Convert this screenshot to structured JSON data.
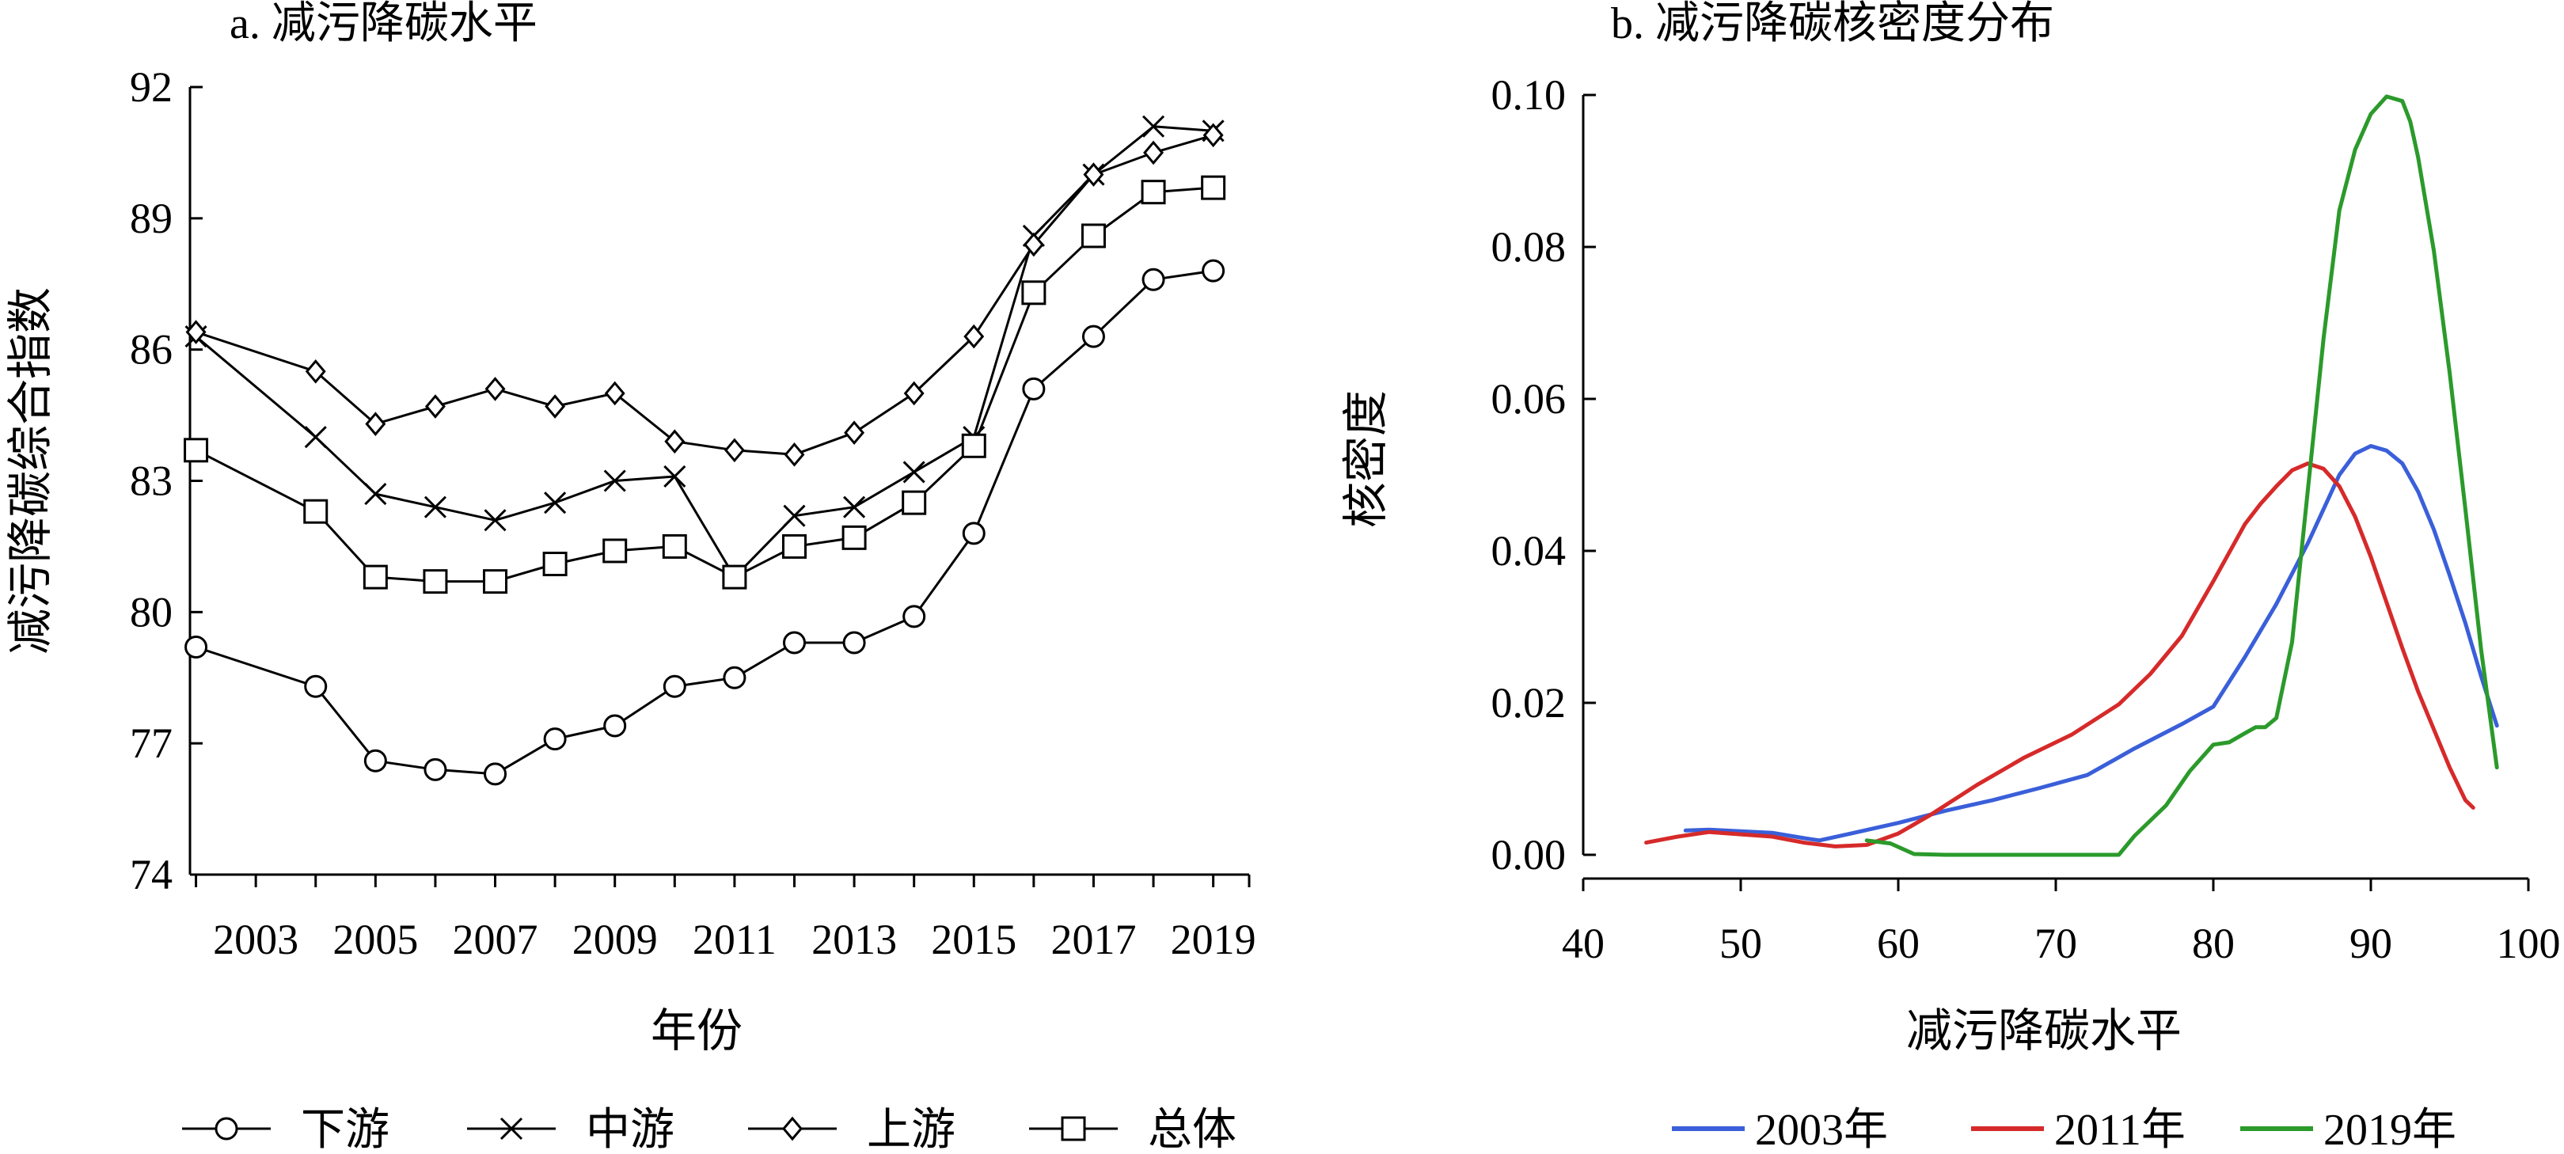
{
  "chart_data": [
    {
      "type": "line",
      "title": "a. 减污降碳水平",
      "xlabel": "年份",
      "ylabel": "减污降碳综合指数",
      "x": [
        2002,
        2004,
        2005,
        2006,
        2007,
        2008,
        2009,
        2010,
        2011,
        2012,
        2013,
        2014,
        2015,
        2016,
        2017,
        2018,
        2019
      ],
      "xlim": [
        2001.9,
        2019.6
      ],
      "xticks": [
        2003,
        2005,
        2007,
        2009,
        2011,
        2013,
        2015,
        2017,
        2019
      ],
      "xtick_labels": [
        "2003",
        "2005",
        "2007",
        "2009",
        "2011",
        "2013",
        "2015",
        "2017",
        "2019"
      ],
      "ylim": [
        74,
        92
      ],
      "yticks": [
        74,
        77,
        80,
        83,
        86,
        89,
        92
      ],
      "ytick_labels": [
        "74",
        "77",
        "80",
        "83",
        "86",
        "89",
        "92"
      ],
      "grid": false,
      "legend_position": "bottom",
      "series": [
        {
          "name": "下游",
          "marker": "circle",
          "color": "#000000",
          "values": [
            79.2,
            78.3,
            76.6,
            76.4,
            76.3,
            77.1,
            77.4,
            78.3,
            78.5,
            79.3,
            79.3,
            79.9,
            81.8,
            85.1,
            86.3,
            87.6,
            87.8
          ]
        },
        {
          "name": "中游",
          "marker": "x",
          "color": "#000000",
          "values": [
            86.3,
            84.0,
            82.7,
            82.4,
            82.1,
            82.5,
            83.0,
            83.1,
            80.8,
            82.2,
            82.4,
            83.2,
            84.0,
            88.6,
            90.0,
            91.1,
            91.0
          ]
        },
        {
          "name": "上游",
          "marker": "diamond",
          "color": "#000000",
          "values": [
            86.4,
            85.5,
            84.3,
            84.7,
            85.1,
            84.7,
            85.0,
            83.9,
            83.7,
            83.6,
            84.1,
            85.0,
            86.3,
            88.4,
            90.0,
            90.5,
            90.9
          ]
        },
        {
          "name": "总体",
          "marker": "square",
          "color": "#000000",
          "values": [
            83.7,
            82.3,
            80.8,
            80.7,
            80.7,
            81.1,
            81.4,
            81.5,
            80.8,
            81.5,
            81.7,
            82.5,
            83.8,
            87.3,
            88.6,
            89.6,
            89.7
          ]
        }
      ]
    },
    {
      "type": "line",
      "title": "b. 减污降碳核密度分布",
      "xlabel": "减污降碳水平",
      "ylabel": "核密度",
      "xlim": [
        40,
        100
      ],
      "ylim": [
        0,
        0.1
      ],
      "xticks": [
        40,
        50,
        60,
        70,
        80,
        90,
        100
      ],
      "xtick_labels": [
        "40",
        "50",
        "60",
        "70",
        "80",
        "90",
        "100"
      ],
      "yticks": [
        0,
        0.02,
        0.04,
        0.06,
        0.08,
        0.1
      ],
      "ytick_labels": [
        "0.00",
        "0.02",
        "0.04",
        "0.06",
        "0.08",
        "0.10"
      ],
      "grid": false,
      "legend_position": "bottom",
      "series": [
        {
          "name": "2003年",
          "color": "#3a5fd9",
          "x": [
            46.5,
            48,
            50,
            52,
            54,
            55,
            57,
            60,
            63,
            66,
            69,
            72,
            75,
            78,
            80,
            82,
            84,
            86,
            88,
            89,
            90,
            91,
            92,
            93,
            94,
            95,
            96,
            97,
            98
          ],
          "y": [
            0.0032,
            0.0033,
            0.0031,
            0.0029,
            0.0022,
            0.0019,
            0.0028,
            0.0042,
            0.0058,
            0.0072,
            0.0088,
            0.0105,
            0.014,
            0.0172,
            0.0195,
            0.026,
            0.033,
            0.041,
            0.05,
            0.0528,
            0.0538,
            0.0532,
            0.0515,
            0.0478,
            0.0428,
            0.0368,
            0.0305,
            0.0235,
            0.017
          ]
        },
        {
          "name": "2011年",
          "color": "#d62a2a",
          "x": [
            44,
            46,
            48,
            50,
            52,
            54,
            56,
            58,
            60,
            62,
            65,
            68,
            71,
            74,
            76,
            78,
            80,
            82,
            83,
            84,
            85,
            86,
            87,
            88,
            89,
            90,
            91,
            92,
            93,
            94,
            95,
            96,
            96.5
          ],
          "y": [
            0.0016,
            0.0024,
            0.003,
            0.0027,
            0.0024,
            0.0016,
            0.0011,
            0.0013,
            0.0028,
            0.0052,
            0.0092,
            0.0128,
            0.0158,
            0.0198,
            0.0238,
            0.0288,
            0.036,
            0.0435,
            0.0462,
            0.0485,
            0.0506,
            0.0515,
            0.0508,
            0.0485,
            0.0445,
            0.0392,
            0.0332,
            0.0272,
            0.0215,
            0.0165,
            0.0115,
            0.0072,
            0.0062
          ]
        },
        {
          "name": "2019年",
          "color": "#2b9a2b",
          "x": [
            58,
            59.5,
            61,
            63,
            66,
            70,
            74,
            75,
            77,
            78.5,
            80,
            81,
            82,
            82.7,
            83.3,
            84,
            85,
            86,
            87,
            88,
            89,
            90,
            91,
            92,
            92.5,
            93,
            94,
            95,
            96,
            97,
            98
          ],
          "y": [
            0.0019,
            0.0015,
            0.0001,
            0.0,
            0.0,
            0.0,
            0.0,
            0.0025,
            0.0065,
            0.011,
            0.0145,
            0.0148,
            0.016,
            0.0168,
            0.0168,
            0.018,
            0.028,
            0.048,
            0.068,
            0.0848,
            0.0928,
            0.0975,
            0.0998,
            0.0992,
            0.0965,
            0.0918,
            0.0795,
            0.0635,
            0.0455,
            0.027,
            0.0115
          ]
        }
      ]
    }
  ]
}
